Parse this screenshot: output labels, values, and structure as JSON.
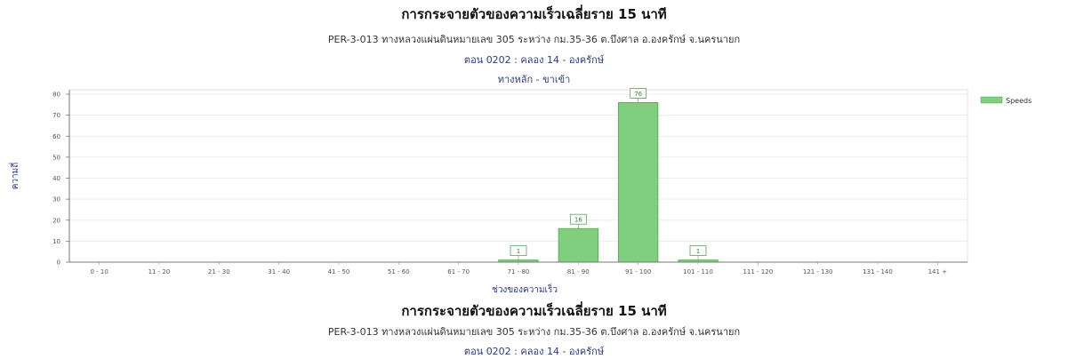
{
  "header": {
    "title": "การกระจายตัวของความเร็วเฉลี่ยราย 15 นาที",
    "subtitle": "PER-3-013 ทางหลวงแผ่นดินหมายเลข 305 ระหว่าง กม.35-36 ต.บึงศาล อ.องครักษ์ จ.นครนายก",
    "section": "ตอน 0202 : คลอง 14 - องครักษ์",
    "direction": "ทางหลัก - ขาเข้า"
  },
  "footer": {
    "title": "การกระจายตัวของความเร็วเฉลี่ยราย 15 นาที",
    "subtitle": "PER-3-013 ทางหลวงแผ่นดินหมายเลข 305 ระหว่าง กม.35-36 ต.บึงศาล อ.องครักษ์ จ.นครนายก",
    "section": "ตอน 0202 : คลอง 14 - องครักษ์"
  },
  "chart_data": {
    "type": "bar",
    "categories": [
      "0 - 10",
      "11 - 20",
      "21 - 30",
      "31 - 40",
      "41 - 50",
      "51 - 60",
      "61 - 70",
      "71 - 80",
      "81 - 90",
      "91 - 100",
      "101 - 110",
      "111 - 120",
      "121 - 130",
      "131 - 140",
      "141 +"
    ],
    "series": [
      {
        "name": "Speeds",
        "values": [
          0,
          0,
          0,
          0,
          0,
          0,
          0,
          1,
          16,
          76,
          1,
          0,
          0,
          0,
          0
        ]
      }
    ],
    "data_labels": [
      "",
      "",
      "",
      "",
      "",
      "",
      "",
      "1",
      "16",
      "76",
      "1",
      "",
      "",
      "",
      ""
    ],
    "xlabel": "ช่วงของความเร็ว",
    "ylabel": "ความถี่",
    "ylim": [
      0,
      80
    ],
    "yticks": [
      0,
      10,
      20,
      30,
      40,
      50,
      60,
      70,
      80
    ],
    "grid": true,
    "legend": "top-right",
    "bar_color": "#7fcf7f",
    "bar_edge_color": "#4aa84a"
  }
}
